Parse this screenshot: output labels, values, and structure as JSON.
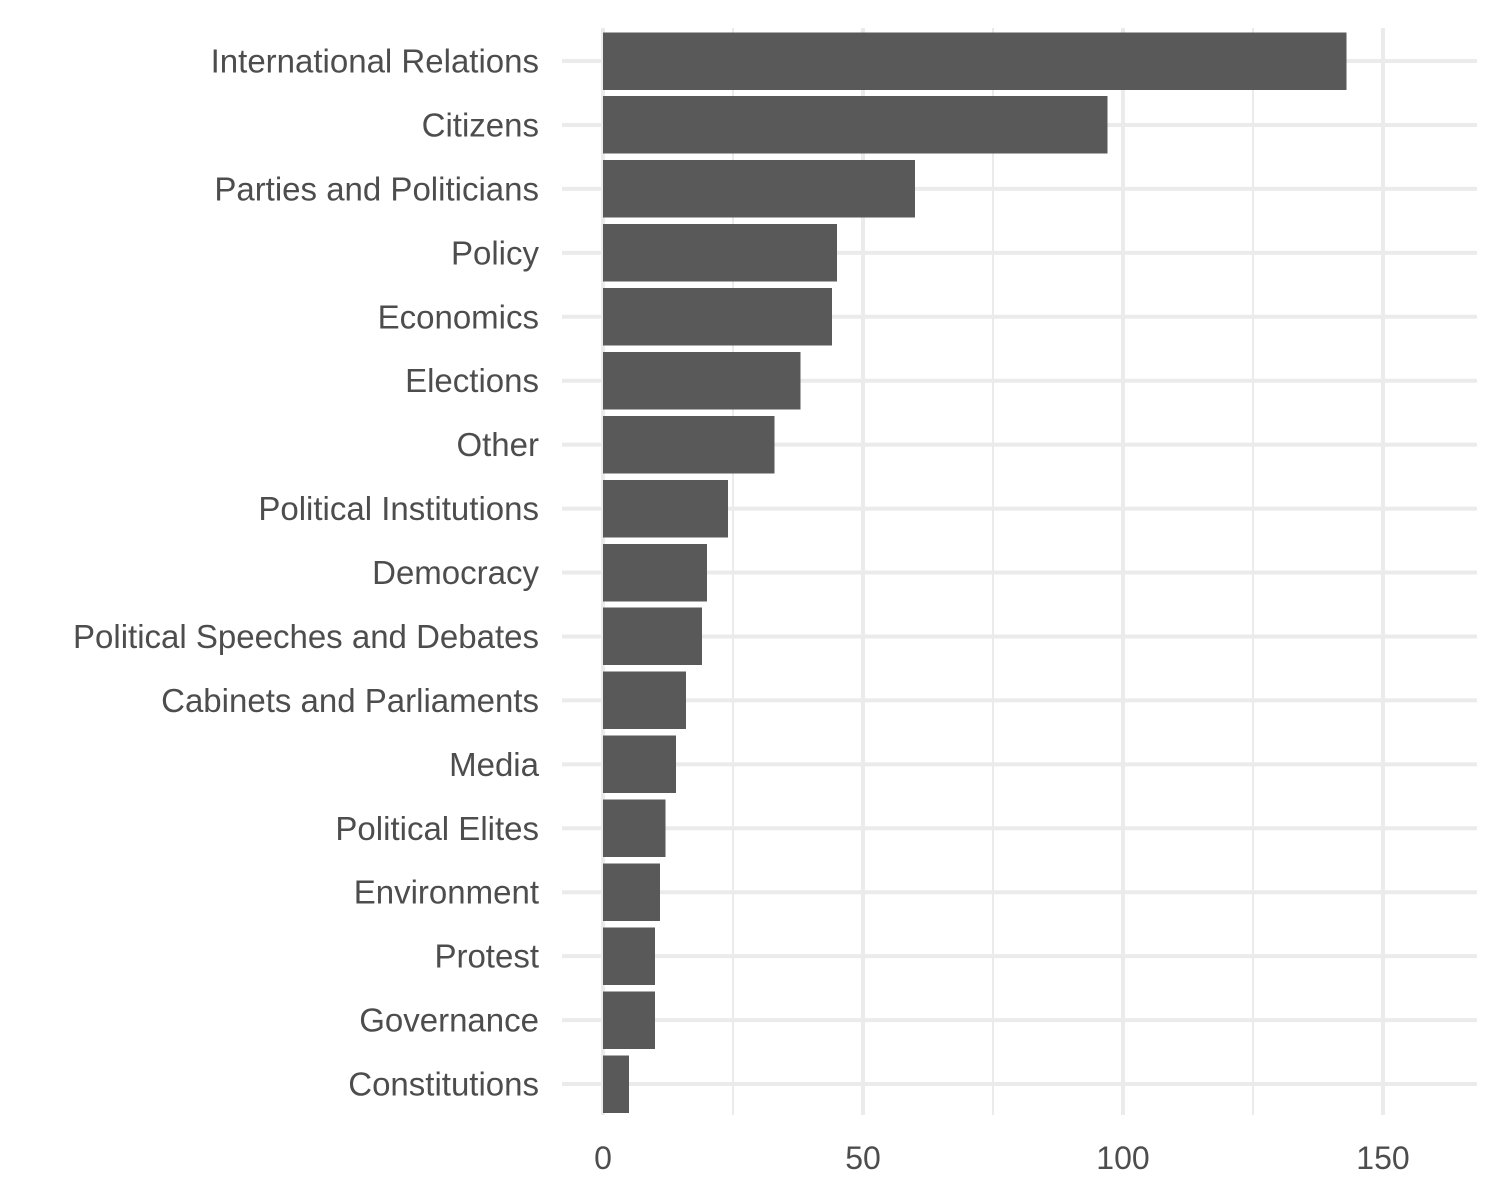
{
  "chart_data": {
    "type": "bar",
    "orientation": "horizontal",
    "title": "",
    "xlabel": "",
    "ylabel": "",
    "categories": [
      "International Relations",
      "Citizens",
      "Parties and Politicians",
      "Policy",
      "Economics",
      "Elections",
      "Other",
      "Political Institutions",
      "Democracy",
      "Political Speeches and Debates",
      "Cabinets and Parliaments",
      "Media",
      "Political Elites",
      "Environment",
      "Protest",
      "Governance",
      "Constitutions"
    ],
    "values": [
      143,
      97,
      60,
      45,
      44,
      38,
      33,
      24,
      20,
      19,
      16,
      14,
      12,
      11,
      10,
      10,
      5
    ],
    "xlim": [
      0,
      168
    ],
    "x_ticks": [
      0,
      50,
      100,
      150
    ],
    "x_tick_labels": [
      "0",
      "50",
      "100",
      "150"
    ],
    "x_minor_ticks": [
      25,
      75,
      125
    ],
    "grid": true,
    "bar_color": "#595959",
    "grid_color": "#ebebeb",
    "text_color": "#4d4d4d"
  }
}
